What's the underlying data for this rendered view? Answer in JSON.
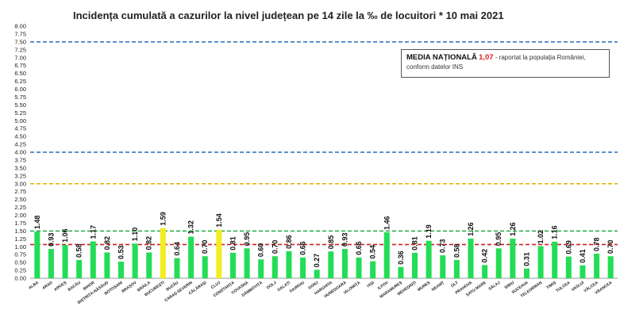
{
  "chart_data": {
    "type": "bar",
    "title": "Incidența cumulată a cazurilor la nivel județean pe 14 zile la ‰ de locuitori *  10 mai 2021",
    "ylim": [
      0,
      8
    ],
    "yticks": [
      "0.00",
      "0.25",
      "0.50",
      "0.75",
      "1.00",
      "1.25",
      "1.50",
      "1.75",
      "2.00",
      "2.25",
      "2.50",
      "2.75",
      "3.00",
      "3.25",
      "3.50",
      "3.75",
      "4.00",
      "4.25",
      "4.50",
      "4.75",
      "5.00",
      "5.25",
      "5.50",
      "5.75",
      "6.00",
      "6.25",
      "6.50",
      "6.75",
      "7.00",
      "7.25",
      "7.50",
      "7.75",
      "8.00"
    ],
    "categories": [
      "ALBA",
      "ARAD",
      "ARGEȘ",
      "BACĂU",
      "BIHOR",
      "BISTRIȚA-NĂSĂUD",
      "BOTOȘANI",
      "BRAȘOV",
      "BRĂILA",
      "BUCUREȘTI",
      "BUZĂU",
      "CARAȘ-SEVERIN",
      "CĂLĂRAȘI",
      "CLUJ",
      "CONSTANȚA",
      "COVASNA",
      "DÂMBOVIȚA",
      "DOLJ",
      "GALAȚI",
      "GIURGIU",
      "GORJ",
      "HARGHITA",
      "HUNEDOARA",
      "IALOMIȚA",
      "IAȘI",
      "ILFOV",
      "MARAMUREȘ",
      "MEHEDINȚI",
      "MUREȘ",
      "NEAMȚ",
      "OLT",
      "PRAHOVA",
      "SATU MARE",
      "SĂLAJ",
      "SIBIU",
      "SUCEAVA",
      "TELEORMAN",
      "TIMIȘ",
      "TULCEA",
      "VASLUI",
      "VÂLCEA",
      "VRANCEA"
    ],
    "values": [
      1.48,
      0.93,
      1.06,
      0.58,
      1.17,
      0.82,
      0.53,
      1.1,
      0.82,
      1.59,
      0.64,
      1.32,
      0.7,
      1.54,
      0.81,
      0.95,
      0.6,
      0.7,
      0.86,
      0.66,
      0.27,
      0.85,
      0.93,
      0.66,
      0.54,
      1.46,
      0.36,
      0.81,
      1.19,
      0.73,
      0.58,
      1.26,
      0.42,
      0.95,
      1.26,
      0.31,
      1.02,
      1.16,
      0.69,
      0.41,
      0.78,
      0.7
    ],
    "data_labels": [
      "1.48",
      "0.93",
      "1.06",
      "0.58",
      "1.17",
      "0.82",
      "0.53",
      "1.10",
      "0.82",
      "1.59",
      "0.64",
      "1.32",
      "0.70",
      "1.54",
      "0.81",
      "0.95",
      "0.60",
      "0.70",
      "0.86",
      "0.66",
      "0.27",
      "0.85",
      "0.93",
      "0.66",
      "0.54",
      "1.46",
      "0.36",
      "0.81",
      "1.19",
      "0.73",
      "0.58",
      "1.26",
      "0.42",
      "0.95",
      "1.26",
      "0.31",
      "1.02",
      "1.16",
      "0.69",
      "0.41",
      "0.78",
      "0.70"
    ],
    "bar_colors": [
      "#22dd55",
      "#22dd55",
      "#22dd55",
      "#22dd55",
      "#22dd55",
      "#22dd55",
      "#22dd55",
      "#22dd55",
      "#22dd55",
      "#f2ee22",
      "#22dd55",
      "#22dd55",
      "#22dd55",
      "#f2ee22",
      "#22dd55",
      "#22dd55",
      "#22dd55",
      "#22dd55",
      "#22dd55",
      "#22dd55",
      "#22dd55",
      "#22dd55",
      "#22dd55",
      "#22dd55",
      "#22dd55",
      "#22dd55",
      "#22dd55",
      "#22dd55",
      "#22dd55",
      "#22dd55",
      "#22dd55",
      "#22dd55",
      "#22dd55",
      "#22dd55",
      "#22dd55",
      "#22dd55",
      "#22dd55",
      "#22dd55",
      "#22dd55",
      "#22dd55",
      "#22dd55",
      "#22dd55"
    ],
    "reference_lines": [
      {
        "value": 7.5,
        "color": "#2a6db5"
      },
      {
        "value": 4.0,
        "color": "#2a6db5"
      },
      {
        "value": 3.0,
        "color": "#e0b000"
      },
      {
        "value": 1.5,
        "color": "#22aa44"
      },
      {
        "value": 1.07,
        "color": "#cc2020"
      }
    ],
    "grid": false,
    "legend": "top-right"
  },
  "legend_note": {
    "label": "MEDIA NAȚIONALĂ",
    "value": "1,07",
    "text_line1": " - raportat la populația României,",
    "text_line2": "conform datelor INS"
  }
}
